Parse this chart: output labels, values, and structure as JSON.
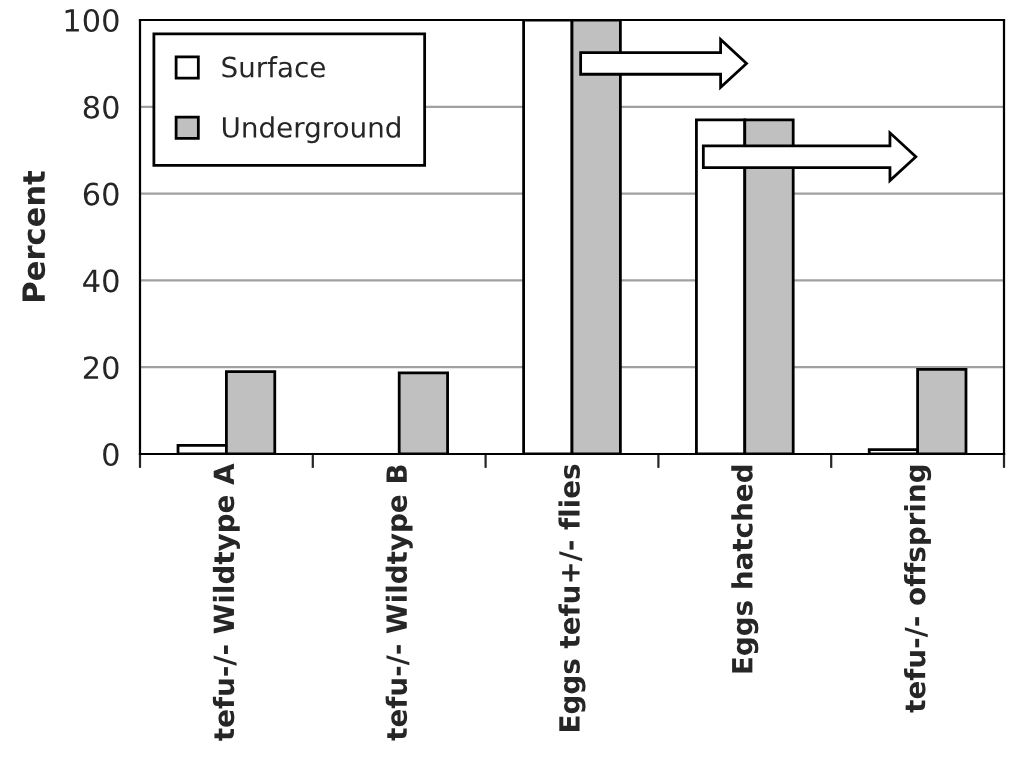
{
  "chart_data": {
    "type": "bar",
    "ylabel": "Percent",
    "categories": [
      "tefu-/- Wildtype A",
      "tefu-/- Wildtype B",
      "Eggs tefu+/- flies",
      "Eggs hatched",
      "tefu-/- offspring"
    ],
    "series": [
      {
        "name": "Surface",
        "color": "#ffffff",
        "values": [
          2,
          null,
          100,
          77,
          1
        ]
      },
      {
        "name": "Underground",
        "color": "#c0c0c0",
        "values": [
          19,
          18.7,
          100,
          77,
          19.5
        ]
      }
    ],
    "ylim": [
      0,
      100
    ],
    "yticks": [
      0,
      20,
      40,
      60,
      80,
      100
    ],
    "grid": "y",
    "legend": "top left"
  }
}
